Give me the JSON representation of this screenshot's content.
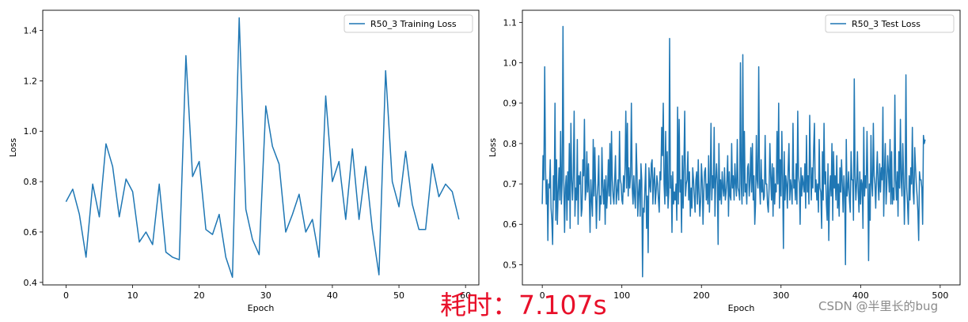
{
  "chart_data": [
    {
      "type": "line",
      "xlabel": "Epoch",
      "ylabel": "Loss",
      "xlim": [
        -3.5,
        62
      ],
      "ylim": [
        0.39,
        1.48
      ],
      "xticks": [
        0,
        10,
        20,
        30,
        40,
        50,
        60
      ],
      "yticks": [
        0.4,
        0.6,
        0.8,
        1.0,
        1.2,
        1.4
      ],
      "ytick_labels": [
        "0.4",
        "0.6",
        "0.8",
        "1.0",
        "1.2",
        "1.4"
      ],
      "legend_position": "top-right",
      "series": [
        {
          "name": "R50_3 Training Loss",
          "color": "#1f77b4",
          "x": [
            0,
            1,
            2,
            3,
            4,
            5,
            6,
            7,
            8,
            9,
            10,
            11,
            12,
            13,
            14,
            15,
            16,
            17,
            18,
            19,
            20,
            21,
            22,
            23,
            24,
            25,
            26,
            27,
            28,
            29,
            30,
            31,
            32,
            33,
            34,
            35,
            36,
            37,
            38,
            39,
            40,
            41,
            42,
            43,
            44,
            45,
            46,
            47,
            48,
            49,
            50,
            51,
            52,
            53,
            54,
            55,
            56,
            57,
            58,
            59
          ],
          "values": [
            0.72,
            0.77,
            0.67,
            0.5,
            0.79,
            0.66,
            0.95,
            0.86,
            0.66,
            0.81,
            0.76,
            0.56,
            0.6,
            0.55,
            0.79,
            0.52,
            0.5,
            0.49,
            1.3,
            0.82,
            0.88,
            0.61,
            0.59,
            0.67,
            0.5,
            0.42,
            1.45,
            0.69,
            0.57,
            0.51,
            1.1,
            0.94,
            0.87,
            0.6,
            0.67,
            0.75,
            0.6,
            0.65,
            0.5,
            1.14,
            0.8,
            0.88,
            0.65,
            0.93,
            0.65,
            0.86,
            0.61,
            0.43,
            1.24,
            0.8,
            0.7,
            0.92,
            0.71,
            0.61,
            0.61,
            0.87,
            0.74,
            0.79,
            0.76,
            0.65
          ]
        }
      ]
    },
    {
      "type": "line",
      "xlabel": "Epoch",
      "ylabel": "Loss",
      "xlim": [
        -25,
        525
      ],
      "ylim": [
        0.45,
        1.13
      ],
      "xticks": [
        0,
        100,
        200,
        300,
        400,
        500
      ],
      "yticks": [
        0.5,
        0.6,
        0.7,
        0.8,
        0.9,
        1.0,
        1.1
      ],
      "ytick_labels": [
        "0.5",
        "0.6",
        "0.7",
        "0.8",
        "0.9",
        "1.0",
        "1.1"
      ],
      "legend_position": "top-right",
      "series": [
        {
          "name": "R50_3 Test Loss",
          "color": "#1f77b4",
          "x_start": 0,
          "x_step": 1,
          "values": [
            0.65,
            0.77,
            0.71,
            0.99,
            0.74,
            0.65,
            0.71,
            0.56,
            0.7,
            0.69,
            0.76,
            0.64,
            0.61,
            0.55,
            0.72,
            0.66,
            0.9,
            0.61,
            0.76,
            0.6,
            0.68,
            0.74,
            0.66,
            0.83,
            0.65,
            0.71,
            1.09,
            0.71,
            0.58,
            0.69,
            0.72,
            0.61,
            0.73,
            0.66,
            0.8,
            0.59,
            0.85,
            0.71,
            0.66,
            0.72,
            0.88,
            0.62,
            0.69,
            0.66,
            0.81,
            0.6,
            0.72,
            0.7,
            0.73,
            0.62,
            0.64,
            0.76,
            0.72,
            0.86,
            0.66,
            0.68,
            0.78,
            0.68,
            0.75,
            0.67,
            0.58,
            0.71,
            0.66,
            0.62,
            0.81,
            0.67,
            0.79,
            0.69,
            0.59,
            0.67,
            0.7,
            0.77,
            0.61,
            0.67,
            0.65,
            0.79,
            0.69,
            0.65,
            0.71,
            0.6,
            0.72,
            0.64,
            0.68,
            0.76,
            0.67,
            0.8,
            0.65,
            0.83,
            0.71,
            0.67,
            0.65,
            0.71,
            0.77,
            0.65,
            0.68,
            0.71,
            0.66,
            0.83,
            0.71,
            0.7,
            0.66,
            0.65,
            0.72,
            0.68,
            0.74,
            0.88,
            0.69,
            0.85,
            0.67,
            0.74,
            0.69,
            0.72,
            0.9,
            0.69,
            0.65,
            0.72,
            0.67,
            0.64,
            0.8,
            0.73,
            0.62,
            0.68,
            0.71,
            0.62,
            0.75,
            0.71,
            0.47,
            0.64,
            0.63,
            0.69,
            0.75,
            0.59,
            0.67,
            0.53,
            0.74,
            0.7,
            0.68,
            0.75,
            0.76,
            0.65,
            0.71,
            0.74,
            0.65,
            0.68,
            0.72,
            0.7,
            0.66,
            0.63,
            0.73,
            0.71,
            0.84,
            0.77,
            0.9,
            0.7,
            0.65,
            0.83,
            0.67,
            0.78,
            0.64,
            0.68,
            1.06,
            0.69,
            0.72,
            0.58,
            0.73,
            0.65,
            0.68,
            0.66,
            0.7,
            0.61,
            0.89,
            0.65,
            0.86,
            0.68,
            0.71,
            0.58,
            0.77,
            0.64,
            0.75,
            0.88,
            0.67,
            0.7,
            0.71,
            0.78,
            0.66,
            0.73,
            0.62,
            0.69,
            0.64,
            0.74,
            0.71,
            0.67,
            0.63,
            0.71,
            0.73,
            0.65,
            0.76,
            0.68,
            0.62,
            0.66,
            0.75,
            0.71,
            0.6,
            0.68,
            0.73,
            0.74,
            0.66,
            0.7,
            0.65,
            0.77,
            0.63,
            0.7,
            0.85,
            0.66,
            0.72,
            0.69,
            0.84,
            0.62,
            0.71,
            0.75,
            0.7,
            0.55,
            0.8,
            0.66,
            0.71,
            0.65,
            0.73,
            0.69,
            0.67,
            0.74,
            0.66,
            0.68,
            0.71,
            0.77,
            0.62,
            0.73,
            0.67,
            0.66,
            0.8,
            0.69,
            0.72,
            0.66,
            0.75,
            0.7,
            0.67,
            0.81,
            0.69,
            0.68,
            0.66,
            1.0,
            0.7,
            0.65,
            1.02,
            0.67,
            0.83,
            0.68,
            0.7,
            0.65,
            0.74,
            0.75,
            0.67,
            0.71,
            0.79,
            0.68,
            0.8,
            0.66,
            0.72,
            0.6,
            0.65,
            0.82,
            0.71,
            0.69,
            0.99,
            0.7,
            0.65,
            0.76,
            0.68,
            0.71,
            0.66,
            0.67,
            0.82,
            0.7,
            0.7,
            0.65,
            0.63,
            0.69,
            0.8,
            0.72,
            0.66,
            0.75,
            0.62,
            0.74,
            0.65,
            0.7,
            0.68,
            0.83,
            0.7,
            0.9,
            0.64,
            0.76,
            0.67,
            0.83,
            0.71,
            0.54,
            0.78,
            0.66,
            0.72,
            0.7,
            0.64,
            0.74,
            0.8,
            0.66,
            0.71,
            0.69,
            0.65,
            0.85,
            0.69,
            0.71,
            0.66,
            0.75,
            0.65,
            0.88,
            0.72,
            0.7,
            0.6,
            0.74,
            0.67,
            0.72,
            0.7,
            0.68,
            0.75,
            0.64,
            0.82,
            0.68,
            0.72,
            0.65,
            0.87,
            0.73,
            0.66,
            0.74,
            0.69,
            0.79,
            0.85,
            0.68,
            0.71,
            0.66,
            0.7,
            0.63,
            0.81,
            0.69,
            0.68,
            0.59,
            0.78,
            0.66,
            0.85,
            0.7,
            0.73,
            0.65,
            0.61,
            0.75,
            0.56,
            0.68,
            0.72,
            0.67,
            0.8,
            0.61,
            0.78,
            0.69,
            0.72,
            0.66,
            0.77,
            0.64,
            0.7,
            0.62,
            0.74,
            0.68,
            0.76,
            0.7,
            0.63,
            0.72,
            0.68,
            0.5,
            0.81,
            0.67,
            0.69,
            0.73,
            0.66,
            0.63,
            0.78,
            0.71,
            0.71,
            0.61,
            0.96,
            0.72,
            0.66,
            0.7,
            0.78,
            0.68,
            0.63,
            0.73,
            0.65,
            0.71,
            0.7,
            0.59,
            0.84,
            0.67,
            0.72,
            0.69,
            0.83,
            0.71,
            0.51,
            0.7,
            0.61,
            0.82,
            0.7,
            0.67,
            0.85,
            0.72,
            0.7,
            0.64,
            0.72,
            0.78,
            0.7,
            0.66,
            0.75,
            0.68,
            0.74,
            0.71,
            0.89,
            0.62,
            0.73,
            0.8,
            0.65,
            0.7,
            0.77,
            0.73,
            0.68,
            0.81,
            0.65,
            0.78,
            0.65,
            0.69,
            0.66,
            0.92,
            0.71,
            0.66,
            0.73,
            0.62,
            0.78,
            0.69,
            0.86,
            0.71,
            0.67,
            0.8,
            0.72,
            0.6,
            0.7,
            0.97,
            0.69,
            0.65,
            0.6,
            0.72,
            0.66,
            0.74,
            0.7,
            0.84,
            0.68,
            0.65,
            0.79,
            0.74,
            0.7,
            0.67,
            0.63,
            0.56,
            0.73,
            0.71,
            0.71,
            0.69,
            0.6,
            0.82,
            0.8,
            0.81
          ]
        }
      ]
    }
  ],
  "overlay": {
    "timing_text": "耗时：7.107s",
    "watermark_text": "CSDN @半里长的bug"
  }
}
